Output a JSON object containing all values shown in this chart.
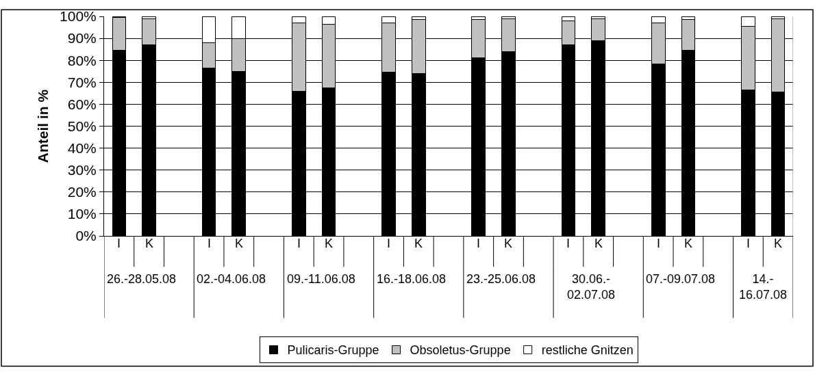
{
  "chart_data": {
    "type": "bar",
    "stacked": true,
    "ylabel": "Anteil in %",
    "categories": [
      "I",
      "K",
      null,
      "I",
      "K",
      null,
      "I",
      "K",
      null,
      "I",
      "K",
      null,
      "I",
      "K",
      null,
      "I",
      "K",
      null,
      "I",
      "K",
      null,
      "I",
      "K"
    ],
    "annotations": [
      "26.-28.05.08",
      "02.-04.06.08",
      "09.-11.06.08",
      "16.-18.06.08",
      "23.-25.06.08",
      "30.06.-\n02.07.08",
      "07.-09.07.08",
      "14.-\n16.07.08"
    ],
    "series": [
      {
        "name": "Pulicaris-Gruppe",
        "color": "#000000",
        "values": [
          84.5,
          87,
          null,
          76.5,
          75,
          null,
          66,
          67.5,
          null,
          74.5,
          74,
          null,
          81,
          84,
          null,
          87,
          89,
          null,
          78.5,
          84.5,
          null,
          66.5,
          65.5
        ]
      },
      {
        "name": "Obsoletus-Gruppe",
        "color": "#c0c0c0",
        "values": [
          15,
          12,
          null,
          11.5,
          15,
          null,
          31,
          29,
          null,
          22.5,
          24.5,
          null,
          17.5,
          15,
          null,
          11,
          10,
          null,
          18.5,
          14,
          null,
          29,
          33.5
        ]
      },
      {
        "name": "restliche Gnitzen",
        "color": "#ffffff",
        "values": [
          0.5,
          1,
          null,
          12,
          10,
          null,
          3,
          3.5,
          null,
          3,
          1.5,
          null,
          1.5,
          1,
          null,
          2,
          1,
          null,
          3,
          1.5,
          null,
          4.5,
          1
        ]
      }
    ],
    "ylim": [
      0,
      100
    ],
    "yticks": [
      {
        "value": 0,
        "label": "0%"
      },
      {
        "value": 10,
        "label": "10%"
      },
      {
        "value": 20,
        "label": "20%"
      },
      {
        "value": 30,
        "label": "30%"
      },
      {
        "value": 40,
        "label": "40%"
      },
      {
        "value": 50,
        "label": "50%"
      },
      {
        "value": 60,
        "label": "60%"
      },
      {
        "value": 70,
        "label": "70%"
      },
      {
        "value": 80,
        "label": "80%"
      },
      {
        "value": 90,
        "label": "90%"
      },
      {
        "value": 100,
        "label": "100%"
      }
    ],
    "grid": "y",
    "legend": "bottom"
  }
}
